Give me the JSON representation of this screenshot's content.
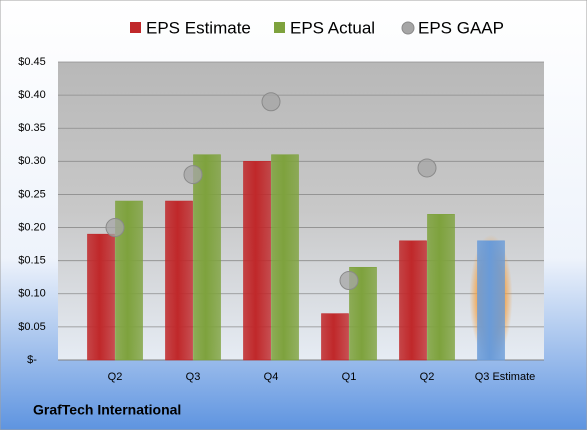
{
  "chart_data": {
    "type": "bar",
    "footer": "GrafTech International",
    "categories": [
      "Q2",
      "Q3",
      "Q4",
      "Q1",
      "Q2",
      "Q3 Estimate"
    ],
    "series": [
      {
        "name": "EPS Estimate",
        "type": "bar",
        "color": "#c0282a",
        "point_colors": [
          "#c0282a",
          "#c0282a",
          "#c0282a",
          "#c0282a",
          "#c0282a",
          "#6a9bd8"
        ],
        "values": [
          0.19,
          0.24,
          0.3,
          0.07,
          0.18,
          0.18
        ]
      },
      {
        "name": "EPS Actual",
        "type": "bar",
        "color": "#7ea23d",
        "values": [
          0.24,
          0.31,
          0.31,
          0.14,
          0.22,
          null
        ]
      },
      {
        "name": "EPS GAAP",
        "type": "scatter",
        "color": "#a6a6a6",
        "values": [
          0.2,
          0.28,
          0.39,
          0.12,
          0.29,
          null
        ]
      }
    ],
    "ylim": [
      0,
      0.45
    ],
    "yticks": [
      {
        "value": 0,
        "label": "$-"
      },
      {
        "value": 0.05,
        "label": "$0.05"
      },
      {
        "value": 0.1,
        "label": "$0.10"
      },
      {
        "value": 0.15,
        "label": "$0.15"
      },
      {
        "value": 0.2,
        "label": "$0.20"
      },
      {
        "value": 0.25,
        "label": "$0.25"
      },
      {
        "value": 0.3,
        "label": "$0.30"
      },
      {
        "value": 0.35,
        "label": "$0.35"
      },
      {
        "value": 0.4,
        "label": "$0.40"
      },
      {
        "value": 0.45,
        "label": "$0.45"
      }
    ],
    "grid": true,
    "legend": "top"
  }
}
